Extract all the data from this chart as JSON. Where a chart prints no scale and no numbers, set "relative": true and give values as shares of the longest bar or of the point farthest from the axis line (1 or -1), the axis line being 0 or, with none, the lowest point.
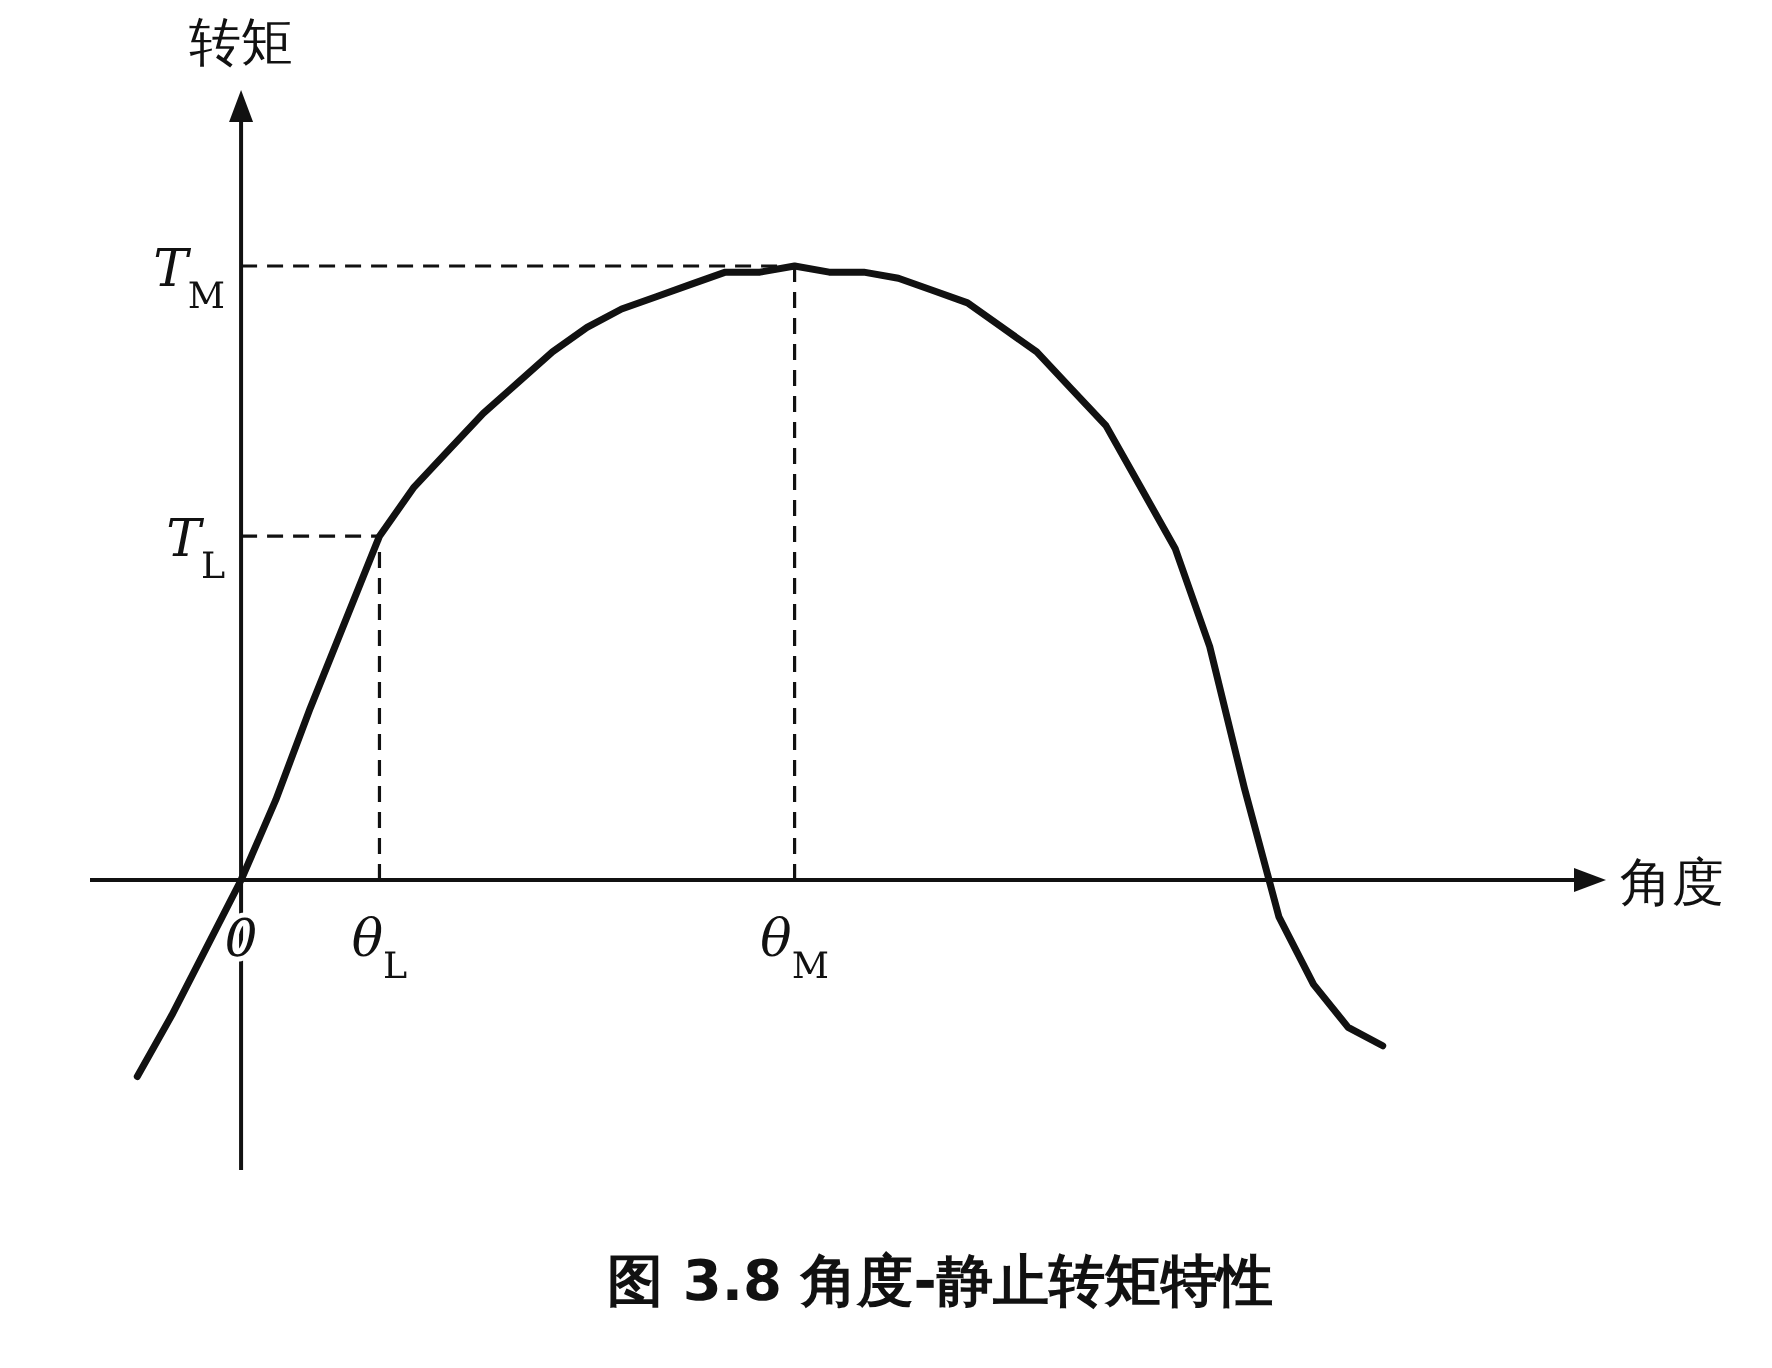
{
  "chart_data": {
    "type": "line",
    "relative": true,
    "title": "图 3.8 角度-静止转矩特性",
    "xlabel": "角度",
    "ylabel": "转矩",
    "categories": [
      null,
      null,
      null,
      "0",
      null,
      null,
      null,
      "θ$_{L}$",
      null,
      null,
      null,
      null,
      null,
      null,
      null,
      null,
      null,
      null,
      null,
      "θ$_{M}$",
      null,
      null,
      null,
      null,
      null,
      null,
      null,
      null,
      null,
      null,
      null,
      null,
      null,
      null,
      null,
      null,
      null
    ],
    "series": [
      {
        "color": "#111111",
        "values": [
          -0.32,
          -0.22,
          -0.11,
          0,
          0.13,
          0.28,
          0.42,
          0.56,
          0.64,
          0.7,
          0.76,
          0.81,
          0.86,
          0.9,
          0.93,
          0.95,
          0.97,
          0.99,
          0.99,
          1,
          0.99,
          0.99,
          0.98,
          0.96,
          0.94,
          0.9,
          0.86,
          0.8,
          0.74,
          0.64,
          0.54,
          0.38,
          0.15,
          -0.06,
          -0.17,
          -0.24,
          -0.27
        ]
      }
    ],
    "ref_lines": [
      {
        "axis": "x",
        "value": "θ$_{L}$",
        "line_style": "dashed"
      },
      {
        "axis": "x",
        "value": "θ$_{M}$",
        "line_style": "dashed"
      },
      {
        "axis": "y",
        "value": 0.56,
        "label": "T$_{L}$",
        "line_style": "dashed"
      },
      {
        "axis": "y",
        "value": 1,
        "label": "T$_{M}$",
        "line_style": "dashed"
      }
    ],
    "line_style": "solid",
    "marker": "none"
  }
}
